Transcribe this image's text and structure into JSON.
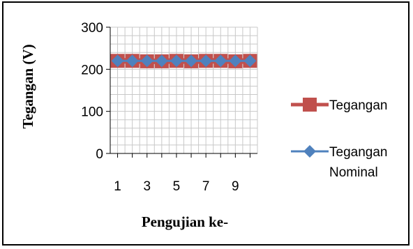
{
  "chart_data": {
    "type": "line",
    "xlabel": "Pengujian ke-",
    "ylabel": "Tegangan (V)",
    "ylim": [
      0,
      300
    ],
    "xlim": [
      1,
      10
    ],
    "yticks": [
      0,
      100,
      200,
      300
    ],
    "xticks": [
      1,
      3,
      5,
      7,
      9
    ],
    "x": [
      1,
      2,
      3,
      4,
      5,
      6,
      7,
      8,
      9,
      10
    ],
    "grid": true,
    "legend_position": "right",
    "series": [
      {
        "name": "Tegangan",
        "values": [
          220,
          220,
          219,
          219,
          220,
          219,
          220,
          220,
          219,
          220
        ],
        "color": "#c0504d",
        "marker": "square"
      },
      {
        "name": "Tegangan Nominal",
        "name_lines": [
          "Tegangan",
          "Nominal"
        ],
        "values": [
          220,
          220,
          220,
          220,
          220,
          220,
          220,
          220,
          220,
          220
        ],
        "color": "#4f81bd",
        "marker": "diamond"
      }
    ]
  }
}
